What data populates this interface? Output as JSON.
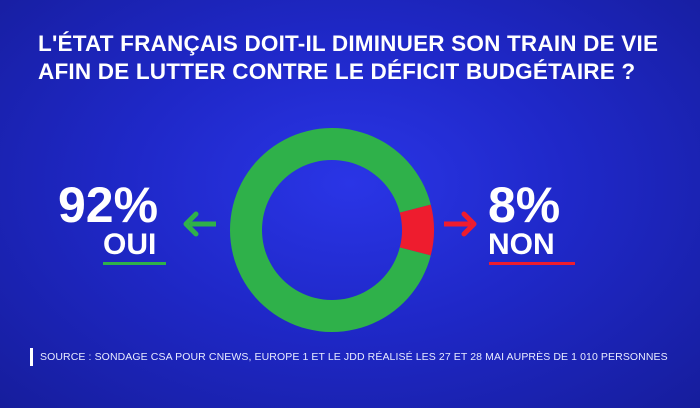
{
  "title": {
    "line1": "L'ÉTAT FRANÇAIS DOIT-IL DIMINUER SON TRAIN DE VIE",
    "line2": "AFIN DE LUTTER CONTRE LE DÉFICIT BUDGÉTAIRE ?"
  },
  "results": {
    "yes": {
      "value_text": "92%",
      "label": "OUI"
    },
    "no": {
      "value_text": "8%",
      "label": "NON"
    }
  },
  "source": "SOURCE : SONDAGE CSA POUR CNEWS, EUROPE 1 ET LE JDD RÉALISÉ LES 27 ET 28 MAI AUPRÈS DE 1 010 PERSONNES",
  "colors": {
    "background": "#1f28c8",
    "yes": "#2fb14a",
    "no": "#ee1c2e",
    "yes_underline": "#2fb14a",
    "no_underline": "#ee1c2e"
  },
  "chart_data": {
    "type": "pie",
    "style": "donut",
    "categories": [
      "OUI",
      "NON"
    ],
    "values": [
      92,
      8
    ],
    "unit": "%",
    "title": "L'ÉTAT FRANÇAIS DOIT-IL DIMINUER SON TRAIN DE VIE AFIN DE LUTTER CONTRE LE DÉFICIT BUDGÉTAIRE ?"
  }
}
